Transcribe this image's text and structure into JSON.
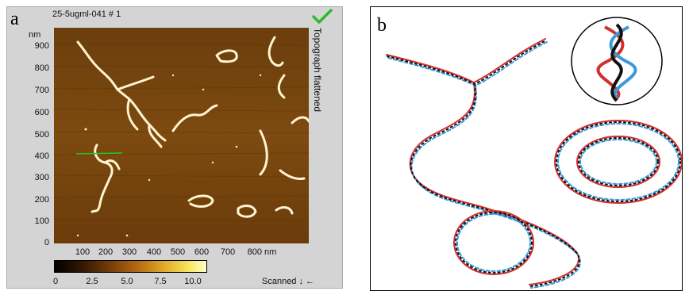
{
  "panel_a": {
    "letter": "a",
    "title": "25-5ugml-041 # 1",
    "unit": "nm",
    "y_ticks": [
      "900",
      "800",
      "700",
      "600",
      "500",
      "400",
      "300",
      "200",
      "100",
      "0"
    ],
    "x_ticks": [
      "100",
      "200",
      "300",
      "400",
      "500",
      "600",
      "700",
      "800 nm"
    ],
    "channel_label": "Topograph flattened",
    "colorbar_ticks": [
      "0",
      "2.5",
      "5.0",
      "7.5",
      "10.0"
    ],
    "scan_label": "Scanned ↓ ←",
    "icons": [
      "check-icon"
    ],
    "colors": {
      "background": "#7a4a10",
      "strand": "#fff6d8",
      "marker": "#22cc22"
    }
  },
  "panel_b": {
    "letter": "b",
    "colors": {
      "strand_red": "#d03030",
      "strand_blue": "#3a9ad8",
      "strand_black": "#111111"
    }
  }
}
